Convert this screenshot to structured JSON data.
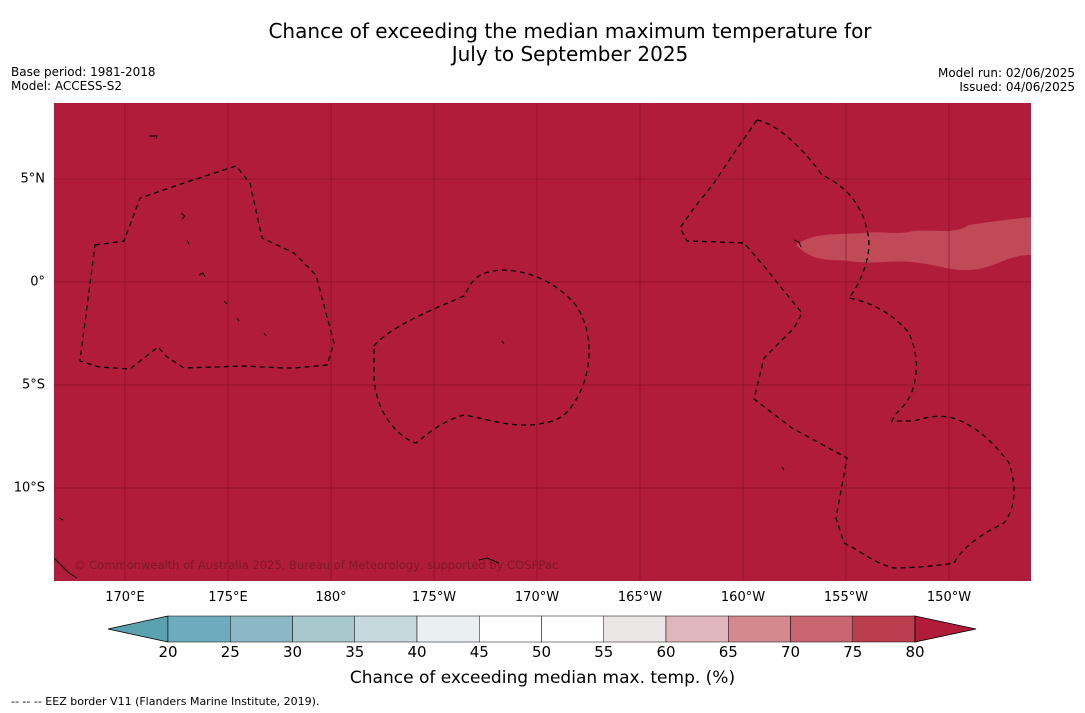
{
  "title_line1": "Chance of exceeding the median maximum temperature for",
  "title_line2": "July to September 2025",
  "base_period": "Base period: 1981-2018",
  "model": "Model: ACCESS-S2",
  "model_run": "Model run: 02/06/2025",
  "issued": "Issued: 04/06/2025",
  "copyright": "© Commonwealth of Australia 2025, Bureau of Meteorology, supported by COSPPac",
  "lon_labels": [
    "170°E",
    "175°E",
    "180°",
    "175°W",
    "170°W",
    "165°W",
    "160°W",
    "155°W",
    "150°W"
  ],
  "lat_labels": [
    "5°N",
    "0°",
    "5°S",
    "10°S"
  ],
  "colorbar": {
    "ticks": [
      "20",
      "25",
      "30",
      "35",
      "40",
      "45",
      "50",
      "55",
      "60",
      "65",
      "70",
      "75",
      "80"
    ],
    "colors": [
      "#5aa2b0",
      "#6cacbc",
      "#8bb8c4",
      "#a8c8cd",
      "#c6d9dc",
      "#eaf0f2",
      "#ffffff",
      "#ffffff",
      "#ebe6e6",
      "#dfb6bb",
      "#d4888f",
      "#c96570",
      "#bb3e4e",
      "#b01c3a"
    ],
    "label": "Chance of exceeding median max. temp. (%)"
  },
  "map_colors": {
    "background": "#b01c3a",
    "patch": "#c14a59"
  },
  "footnote": "--  --  -- EEZ border V11 (Flanders Marine Institute, 2019)."
}
